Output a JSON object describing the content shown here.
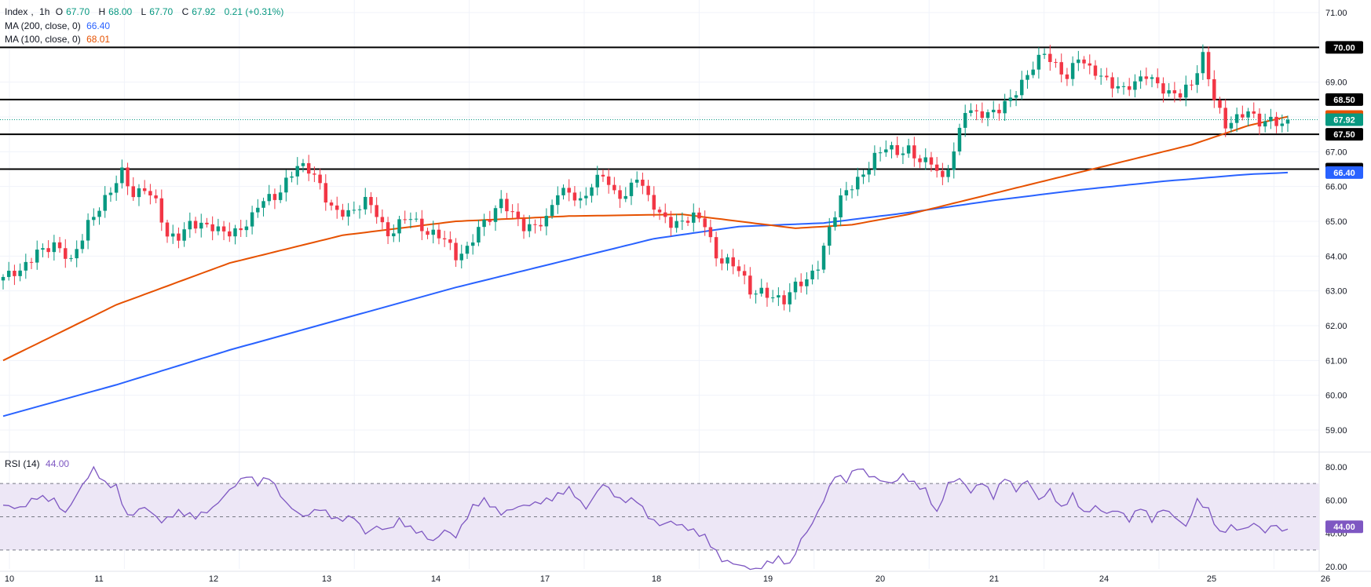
{
  "legend": {
    "symbol": "Index",
    "interval": "1h",
    "open_label": "O",
    "open": "67.70",
    "high_label": "H",
    "high": "68.00",
    "low_label": "L",
    "low": "67.70",
    "close_label": "C",
    "close": "67.92",
    "change": "0.21 (+0.31%)",
    "ma200_label": "MA (200, close, 0)",
    "ma200": "66.40",
    "ma100_label": "MA (100, close, 0)",
    "ma100": "68.01",
    "rsi_label": "RSI (14)",
    "rsi": "44.00"
  },
  "colors": {
    "up": "#089981",
    "down": "#f23645",
    "ma200": "#2962ff",
    "ma100": "#e65100",
    "rsi": "#7e57c2",
    "rsi_band": "#ede7f6",
    "level": "#000000",
    "grid": "#f0f3fa",
    "price_line": "#089981"
  },
  "chart_data": [
    {
      "type": "candlestick",
      "title": "Index, 1h",
      "ylim": [
        58.5,
        71.2
      ],
      "y_ticks": [
        "59.00",
        "60.00",
        "61.00",
        "62.00",
        "63.00",
        "64.00",
        "65.00",
        "66.00",
        "67.00",
        "68.00",
        "69.00",
        "70.00",
        "71.00"
      ],
      "x_ticks": [
        "10",
        "11",
        "12",
        "13",
        "14",
        "17",
        "18",
        "19",
        "20",
        "21",
        "24",
        "25",
        "26"
      ],
      "grid": true,
      "horizontal_levels": [
        {
          "value": 70.0,
          "label": "70.00"
        },
        {
          "value": 68.5,
          "label": "68.50"
        },
        {
          "value": 67.5,
          "label": "67.50"
        },
        {
          "value": 66.5,
          "label": "66.50"
        }
      ],
      "last_price": {
        "value": 67.92,
        "label": "67.92"
      },
      "ma100_last": {
        "value": 68.01,
        "label": "68.01"
      },
      "ma200_last": {
        "value": 66.4,
        "label": "66.40"
      },
      "close_anchors": [
        [
          0,
          63.4
        ],
        [
          3,
          63.5
        ],
        [
          6,
          64.2
        ],
        [
          9,
          64.3
        ],
        [
          12,
          63.8
        ],
        [
          15,
          65.0
        ],
        [
          17,
          65.4
        ],
        [
          19,
          65.8
        ],
        [
          21,
          66.4
        ],
        [
          23,
          65.8
        ],
        [
          25,
          66.0
        ],
        [
          27,
          65.5
        ],
        [
          29,
          64.5
        ],
        [
          31,
          64.6
        ],
        [
          33,
          65.0
        ],
        [
          36,
          64.8
        ],
        [
          39,
          64.7
        ],
        [
          42,
          64.8
        ],
        [
          44,
          65.1
        ],
        [
          46,
          65.6
        ],
        [
          48,
          65.7
        ],
        [
          50,
          66.2
        ],
        [
          52,
          66.6
        ],
        [
          55,
          66.3
        ],
        [
          57,
          65.7
        ],
        [
          59,
          65.3
        ],
        [
          62,
          65.2
        ],
        [
          64,
          65.6
        ],
        [
          66,
          65.3
        ],
        [
          68,
          64.6
        ],
        [
          70,
          64.9
        ],
        [
          72,
          65.1
        ],
        [
          74,
          64.8
        ],
        [
          76,
          64.7
        ],
        [
          78,
          64.5
        ],
        [
          80,
          63.9
        ],
        [
          82,
          64.2
        ],
        [
          84,
          64.9
        ],
        [
          86,
          65.1
        ],
        [
          88,
          65.5
        ],
        [
          90,
          65.2
        ],
        [
          92,
          64.9
        ],
        [
          94,
          64.9
        ],
        [
          96,
          65.0
        ],
        [
          98,
          65.8
        ],
        [
          100,
          65.9
        ],
        [
          102,
          65.6
        ],
        [
          104,
          66.0
        ],
        [
          106,
          66.3
        ],
        [
          108,
          65.8
        ],
        [
          110,
          65.8
        ],
        [
          112,
          66.3
        ],
        [
          114,
          65.6
        ],
        [
          116,
          65.2
        ],
        [
          118,
          65.0
        ],
        [
          120,
          65.0
        ],
        [
          122,
          65.1
        ],
        [
          124,
          64.9
        ],
        [
          126,
          64.0
        ],
        [
          128,
          63.9
        ],
        [
          130,
          63.6
        ],
        [
          132,
          62.9
        ],
        [
          134,
          63.0
        ],
        [
          136,
          62.9
        ],
        [
          138,
          62.7
        ],
        [
          140,
          63.1
        ],
        [
          142,
          63.3
        ],
        [
          144,
          63.8
        ],
        [
          146,
          64.8
        ],
        [
          148,
          65.6
        ],
        [
          150,
          66.0
        ],
        [
          152,
          66.4
        ],
        [
          154,
          66.9
        ],
        [
          156,
          67.1
        ],
        [
          158,
          66.9
        ],
        [
          160,
          67.1
        ],
        [
          162,
          66.8
        ],
        [
          164,
          66.7
        ],
        [
          166,
          66.1
        ],
        [
          168,
          67.0
        ],
        [
          170,
          68.3
        ],
        [
          172,
          68.1
        ],
        [
          174,
          68.0
        ],
        [
          176,
          68.2
        ],
        [
          178,
          68.6
        ],
        [
          180,
          69.0
        ],
        [
          182,
          69.4
        ],
        [
          184,
          69.8
        ],
        [
          186,
          69.5
        ],
        [
          188,
          69.2
        ],
        [
          190,
          69.7
        ],
        [
          192,
          69.3
        ],
        [
          194,
          69.2
        ],
        [
          196,
          69.0
        ],
        [
          198,
          68.8
        ],
        [
          200,
          68.9
        ],
        [
          202,
          69.2
        ],
        [
          204,
          69.0
        ],
        [
          206,
          68.7
        ],
        [
          208,
          68.6
        ],
        [
          210,
          68.9
        ],
        [
          212,
          69.8
        ],
        [
          214,
          68.6
        ],
        [
          216,
          67.7
        ],
        [
          218,
          67.9
        ],
        [
          220,
          68.2
        ],
        [
          222,
          67.9
        ],
        [
          224,
          67.9
        ],
        [
          226,
          67.7
        ],
        [
          227,
          67.92
        ]
      ],
      "ma100": [
        [
          0,
          61.0
        ],
        [
          20,
          62.6
        ],
        [
          40,
          63.8
        ],
        [
          60,
          64.6
        ],
        [
          80,
          65.0
        ],
        [
          100,
          65.15
        ],
        [
          120,
          65.2
        ],
        [
          130,
          65.0
        ],
        [
          140,
          64.8
        ],
        [
          150,
          64.9
        ],
        [
          160,
          65.2
        ],
        [
          170,
          65.6
        ],
        [
          180,
          66.0
        ],
        [
          190,
          66.4
        ],
        [
          200,
          66.8
        ],
        [
          210,
          67.2
        ],
        [
          220,
          67.75
        ],
        [
          227,
          68.01
        ]
      ],
      "ma200": [
        [
          0,
          59.4
        ],
        [
          20,
          60.3
        ],
        [
          40,
          61.3
        ],
        [
          60,
          62.2
        ],
        [
          80,
          63.1
        ],
        [
          100,
          63.9
        ],
        [
          115,
          64.5
        ],
        [
          130,
          64.85
        ],
        [
          145,
          64.95
        ],
        [
          160,
          65.25
        ],
        [
          175,
          65.6
        ],
        [
          190,
          65.9
        ],
        [
          205,
          66.15
        ],
        [
          220,
          66.35
        ],
        [
          227,
          66.4
        ]
      ]
    },
    {
      "type": "line",
      "title": "RSI (14)",
      "ylim": [
        15,
        85
      ],
      "y_ticks": [
        "20.00",
        "40.00",
        "60.00",
        "80.00"
      ],
      "bands": [
        30,
        50,
        70
      ],
      "last": {
        "value": 44.0,
        "label": "44.00"
      },
      "values": [
        [
          0,
          57
        ],
        [
          3,
          55
        ],
        [
          6,
          62
        ],
        [
          9,
          60
        ],
        [
          11,
          52
        ],
        [
          14,
          69
        ],
        [
          16,
          79
        ],
        [
          18,
          70
        ],
        [
          20,
          68
        ],
        [
          22,
          50
        ],
        [
          25,
          56
        ],
        [
          28,
          47
        ],
        [
          31,
          53
        ],
        [
          34,
          50
        ],
        [
          37,
          55
        ],
        [
          40,
          66
        ],
        [
          43,
          75
        ],
        [
          45,
          70
        ],
        [
          47,
          74
        ],
        [
          50,
          58
        ],
        [
          53,
          50
        ],
        [
          56,
          55
        ],
        [
          59,
          48
        ],
        [
          62,
          50
        ],
        [
          64,
          40
        ],
        [
          66,
          44
        ],
        [
          68,
          42
        ],
        [
          70,
          48
        ],
        [
          72,
          43
        ],
        [
          74,
          40
        ],
        [
          76,
          35
        ],
        [
          78,
          42
        ],
        [
          80,
          38
        ],
        [
          83,
          56
        ],
        [
          85,
          60
        ],
        [
          88,
          52
        ],
        [
          91,
          56
        ],
        [
          94,
          58
        ],
        [
          97,
          61
        ],
        [
          100,
          67
        ],
        [
          103,
          55
        ],
        [
          106,
          70
        ],
        [
          109,
          60
        ],
        [
          112,
          60
        ],
        [
          114,
          50
        ],
        [
          116,
          45
        ],
        [
          118,
          47
        ],
        [
          121,
          43
        ],
        [
          124,
          38
        ],
        [
          127,
          24
        ],
        [
          130,
          21
        ],
        [
          133,
          18
        ],
        [
          135,
          22
        ],
        [
          137,
          25
        ],
        [
          139,
          21
        ],
        [
          141,
          36
        ],
        [
          143,
          46
        ],
        [
          145,
          60
        ],
        [
          147,
          75
        ],
        [
          149,
          72
        ],
        [
          151,
          80
        ],
        [
          153,
          75
        ],
        [
          155,
          72
        ],
        [
          157,
          70
        ],
        [
          159,
          75
        ],
        [
          161,
          70
        ],
        [
          163,
          66
        ],
        [
          165,
          52
        ],
        [
          167,
          70
        ],
        [
          169,
          73
        ],
        [
          171,
          65
        ],
        [
          173,
          71
        ],
        [
          175,
          62
        ],
        [
          177,
          74
        ],
        [
          179,
          66
        ],
        [
          181,
          72
        ],
        [
          183,
          60
        ],
        [
          185,
          66
        ],
        [
          187,
          55
        ],
        [
          189,
          63
        ],
        [
          191,
          52
        ],
        [
          193,
          56
        ],
        [
          195,
          52
        ],
        [
          197,
          54
        ],
        [
          199,
          48
        ],
        [
          201,
          56
        ],
        [
          203,
          48
        ],
        [
          205,
          55
        ],
        [
          207,
          50
        ],
        [
          209,
          44
        ],
        [
          211,
          60
        ],
        [
          213,
          54
        ],
        [
          215,
          40
        ],
        [
          217,
          44
        ],
        [
          219,
          42
        ],
        [
          221,
          46
        ],
        [
          223,
          41
        ],
        [
          225,
          46
        ],
        [
          226,
          40
        ],
        [
          227,
          44
        ]
      ]
    }
  ]
}
